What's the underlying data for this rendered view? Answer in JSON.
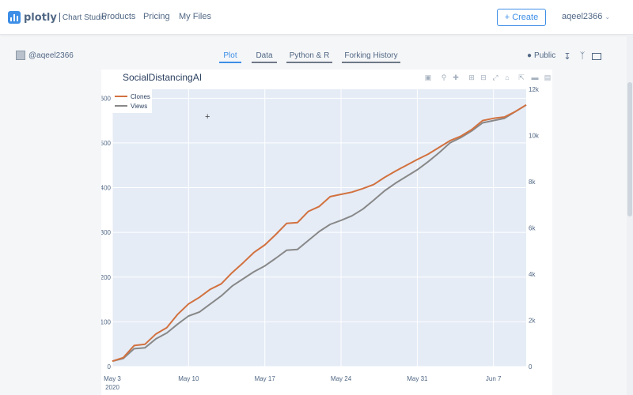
{
  "nav": {
    "brand_word": "plotly",
    "brand_sub": "Chart Studio",
    "links": [
      "Products",
      "Pricing",
      "My Files"
    ],
    "create_label": "Create",
    "username": "aqeel2366"
  },
  "subheader": {
    "owner": "@aqeel2366",
    "tabs": [
      "Plot",
      "Data",
      "Python & R",
      "Forking History"
    ],
    "active_tab": "Plot",
    "visibility": "Public"
  },
  "colors": {
    "clones": "#d2713f",
    "views": "#888888",
    "plot_bg": "#e5ecf6",
    "accent": "#3d8ee6"
  },
  "chart_data": {
    "type": "line",
    "title": "SocialDistancingAI",
    "legend_position": "top-left",
    "x_ticks": [
      "May 3",
      "May 10",
      "May 17",
      "May 24",
      "May 31",
      "Jun 7"
    ],
    "x_year_label": "2020",
    "y_left": {
      "range": [
        0,
        620
      ],
      "ticks": [
        0,
        100,
        200,
        300,
        400,
        500,
        600
      ]
    },
    "y_right": {
      "range": [
        0,
        12000
      ],
      "ticks": [
        0,
        2000,
        4000,
        6000,
        8000,
        10000,
        12000
      ],
      "tick_labels": [
        "0",
        "2k",
        "4k",
        "6k",
        "8k",
        "10k",
        "12k"
      ]
    },
    "x_days": [
      0,
      1,
      2,
      3,
      4,
      5,
      6,
      7,
      8,
      9,
      10,
      11,
      12,
      13,
      14,
      15,
      16,
      17,
      18,
      19,
      20,
      21,
      22,
      23,
      24,
      25,
      26,
      27,
      28,
      29,
      30,
      31,
      32,
      33,
      34,
      35,
      36,
      37,
      38
    ],
    "series": [
      {
        "name": "Clones",
        "axis": "left",
        "values": [
          12,
          20,
          47,
          50,
          73,
          87,
          117,
          140,
          155,
          173,
          185,
          210,
          232,
          255,
          272,
          295,
          320,
          322,
          347,
          358,
          380,
          385,
          390,
          398,
          407,
          423,
          437,
          450,
          463,
          475,
          490,
          505,
          515,
          530,
          550,
          555,
          558,
          570,
          585
        ]
      },
      {
        "name": "Views",
        "axis": "left",
        "values": [
          12,
          18,
          40,
          42,
          62,
          75,
          95,
          113,
          122,
          140,
          158,
          180,
          196,
          212,
          225,
          242,
          260,
          262,
          282,
          302,
          318,
          327,
          337,
          352,
          372,
          393,
          410,
          425,
          440,
          458,
          478,
          500,
          512,
          527,
          545,
          550,
          555,
          570,
          585
        ]
      }
    ]
  }
}
